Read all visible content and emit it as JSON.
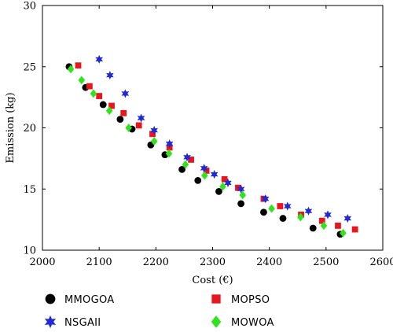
{
  "chart_data": {
    "type": "scatter",
    "xlabel": "Cost (€)",
    "ylabel": "Emission (kg)",
    "xlim": [
      2000,
      2600
    ],
    "ylim": [
      10,
      30
    ],
    "xticks": [
      2000,
      2100,
      2200,
      2300,
      2400,
      2500,
      2600
    ],
    "yticks": [
      10,
      15,
      20,
      25,
      30
    ],
    "grid": false,
    "legend_position": "bottom",
    "series": [
      {
        "name": "MMOGOA",
        "marker": "circle",
        "color": "#000000",
        "points": [
          [
            2047,
            25.0
          ],
          [
            2076,
            23.3
          ],
          [
            2107,
            21.9
          ],
          [
            2137,
            20.7
          ],
          [
            2158,
            19.9
          ],
          [
            2191,
            18.6
          ],
          [
            2216,
            17.8
          ],
          [
            2246,
            16.6
          ],
          [
            2274,
            15.7
          ],
          [
            2311,
            14.8
          ],
          [
            2350,
            13.8
          ],
          [
            2390,
            13.1
          ],
          [
            2424,
            12.6
          ],
          [
            2477,
            11.8
          ],
          [
            2525,
            11.3
          ]
        ]
      },
      {
        "name": "MOPSO",
        "marker": "square",
        "color": "#e8171f",
        "points": [
          [
            2063,
            25.1
          ],
          [
            2083,
            23.4
          ],
          [
            2100,
            22.6
          ],
          [
            2122,
            21.8
          ],
          [
            2143,
            21.2
          ],
          [
            2170,
            20.2
          ],
          [
            2194,
            19.5
          ],
          [
            2224,
            18.4
          ],
          [
            2262,
            17.4
          ],
          [
            2289,
            16.5
          ],
          [
            2321,
            15.8
          ],
          [
            2345,
            15.1
          ],
          [
            2390,
            14.2
          ],
          [
            2419,
            13.6
          ],
          [
            2456,
            12.9
          ],
          [
            2493,
            12.4
          ],
          [
            2521,
            12.0
          ],
          [
            2551,
            11.7
          ]
        ]
      },
      {
        "name": "NSGAII",
        "marker": "star",
        "color": "#1f2ad4",
        "points": [
          [
            2100,
            25.6
          ],
          [
            2119,
            24.3
          ],
          [
            2146,
            22.8
          ],
          [
            2174,
            20.8
          ],
          [
            2197,
            19.8
          ],
          [
            2224,
            18.7
          ],
          [
            2255,
            17.6
          ],
          [
            2285,
            16.7
          ],
          [
            2303,
            16.2
          ],
          [
            2327,
            15.5
          ],
          [
            2350,
            15.0
          ],
          [
            2393,
            14.2
          ],
          [
            2432,
            13.6
          ],
          [
            2469,
            13.2
          ],
          [
            2503,
            12.9
          ],
          [
            2538,
            12.6
          ]
        ]
      },
      {
        "name": "MOWOA",
        "marker": "diamond",
        "color": "#2fe41a",
        "points": [
          [
            2050,
            24.8
          ],
          [
            2069,
            23.9
          ],
          [
            2090,
            22.8
          ],
          [
            2118,
            21.4
          ],
          [
            2152,
            20.0
          ],
          [
            2197,
            18.9
          ],
          [
            2223,
            17.9
          ],
          [
            2252,
            17.0
          ],
          [
            2286,
            16.1
          ],
          [
            2318,
            15.2
          ],
          [
            2353,
            14.5
          ],
          [
            2404,
            13.4
          ],
          [
            2455,
            12.7
          ],
          [
            2496,
            12.0
          ],
          [
            2530,
            11.4
          ]
        ]
      }
    ]
  }
}
